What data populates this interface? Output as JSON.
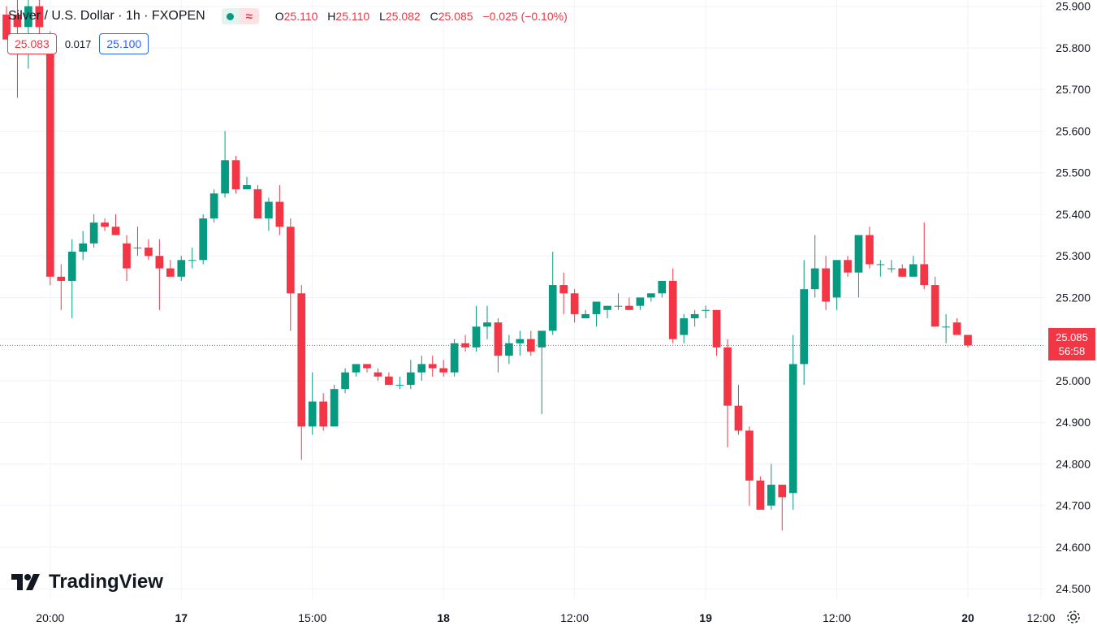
{
  "header": {
    "symbol": "Silver / U.S. Dollar · 1h · FXOPEN",
    "open_label": "O",
    "open": "25.110",
    "high_label": "H",
    "high": "25.110",
    "low_label": "L",
    "low": "25.082",
    "close_label": "C",
    "close": "25.085",
    "change": "−0.025 (−0.10%)"
  },
  "trade": {
    "bid": "25.083",
    "spread": "0.017",
    "ask": "25.100"
  },
  "last_price": {
    "price": "25.085",
    "countdown": "56:58"
  },
  "logo": {
    "text": "TradingView"
  },
  "colors": {
    "up": "#089981",
    "down": "#f23645",
    "grid": "#f0f3fa",
    "ask": "#2962ff"
  },
  "icons": [
    "status-dot-icon",
    "delay-wave-icon",
    "tradingview-logo-icon",
    "settings-gear-icon"
  ],
  "chart_data": {
    "type": "candlestick",
    "y_axis": {
      "ticks": [
        24.5,
        24.6,
        24.7,
        24.8,
        24.9,
        25.0,
        25.1,
        25.2,
        25.3,
        25.4,
        25.5,
        25.6,
        25.7,
        25.8,
        25.9
      ],
      "range": [
        24.475,
        25.915
      ]
    },
    "x_axis": {
      "ticks": [
        "20:00",
        "17",
        "15:00",
        "18",
        "12:00",
        "19",
        "12:00",
        "20",
        "12:00"
      ]
    },
    "last_price_line": 25.085,
    "candles": [
      [
        25.88,
        25.9,
        25.82,
        25.82
      ],
      [
        25.88,
        25.92,
        25.68,
        25.85
      ],
      [
        25.85,
        25.95,
        25.75,
        25.9
      ],
      [
        25.9,
        25.93,
        25.8,
        25.85
      ],
      [
        25.82,
        25.84,
        25.23,
        25.25
      ],
      [
        25.25,
        25.28,
        25.17,
        25.24
      ],
      [
        25.24,
        25.34,
        25.15,
        25.31
      ],
      [
        25.31,
        25.36,
        25.29,
        25.33
      ],
      [
        25.33,
        25.4,
        25.32,
        25.38
      ],
      [
        25.38,
        25.39,
        25.36,
        25.37
      ],
      [
        25.37,
        25.4,
        25.35,
        25.35
      ],
      [
        25.33,
        25.35,
        25.24,
        25.27
      ],
      [
        25.32,
        25.37,
        25.3,
        25.32
      ],
      [
        25.32,
        25.34,
        25.29,
        25.3
      ],
      [
        25.3,
        25.34,
        25.17,
        25.27
      ],
      [
        25.27,
        25.29,
        25.25,
        25.25
      ],
      [
        25.25,
        25.3,
        25.24,
        25.29
      ],
      [
        25.29,
        25.32,
        25.27,
        25.29
      ],
      [
        25.29,
        25.4,
        25.28,
        25.39
      ],
      [
        25.39,
        25.46,
        25.38,
        25.45
      ],
      [
        25.45,
        25.6,
        25.44,
        25.53
      ],
      [
        25.53,
        25.54,
        25.45,
        25.46
      ],
      [
        25.46,
        25.49,
        25.46,
        25.47
      ],
      [
        25.46,
        25.47,
        25.39,
        25.39
      ],
      [
        25.39,
        25.44,
        25.36,
        25.43
      ],
      [
        25.43,
        25.47,
        25.35,
        25.37
      ],
      [
        25.37,
        25.39,
        25.12,
        25.21
      ],
      [
        25.21,
        25.23,
        24.81,
        24.89
      ],
      [
        24.89,
        25.02,
        24.87,
        24.95
      ],
      [
        24.95,
        24.97,
        24.88,
        24.89
      ],
      [
        24.89,
        24.99,
        24.89,
        24.98
      ],
      [
        24.98,
        25.03,
        24.97,
        25.02
      ],
      [
        25.02,
        25.04,
        25.01,
        25.04
      ],
      [
        25.04,
        25.04,
        25.02,
        25.03
      ],
      [
        25.02,
        25.03,
        25.0,
        25.01
      ],
      [
        25.01,
        25.02,
        24.99,
        24.99
      ],
      [
        24.99,
        25.01,
        24.98,
        24.99
      ],
      [
        24.99,
        25.05,
        24.98,
        25.02
      ],
      [
        25.02,
        25.06,
        25.0,
        25.04
      ],
      [
        25.04,
        25.06,
        25.01,
        25.03
      ],
      [
        25.03,
        25.05,
        25.01,
        25.02
      ],
      [
        25.02,
        25.1,
        25.01,
        25.09
      ],
      [
        25.09,
        25.11,
        25.07,
        25.08
      ],
      [
        25.08,
        25.18,
        25.07,
        25.13
      ],
      [
        25.13,
        25.18,
        25.1,
        25.14
      ],
      [
        25.14,
        25.15,
        25.02,
        25.06
      ],
      [
        25.06,
        25.11,
        25.04,
        25.09
      ],
      [
        25.09,
        25.12,
        25.06,
        25.1
      ],
      [
        25.1,
        25.12,
        25.06,
        25.07
      ],
      [
        25.08,
        25.12,
        24.92,
        25.12
      ],
      [
        25.12,
        25.31,
        25.11,
        25.23
      ],
      [
        25.23,
        25.26,
        25.16,
        25.21
      ],
      [
        25.21,
        25.22,
        25.14,
        25.16
      ],
      [
        25.15,
        25.17,
        25.15,
        25.16
      ],
      [
        25.16,
        25.19,
        25.13,
        25.19
      ],
      [
        25.17,
        25.18,
        25.15,
        25.18
      ],
      [
        25.18,
        25.21,
        25.17,
        25.18
      ],
      [
        25.18,
        25.2,
        25.17,
        25.17
      ],
      [
        25.18,
        25.2,
        25.17,
        25.2
      ],
      [
        25.2,
        25.21,
        25.19,
        25.21
      ],
      [
        25.21,
        25.24,
        25.2,
        25.24
      ],
      [
        25.24,
        25.27,
        25.09,
        25.1
      ],
      [
        25.11,
        25.16,
        25.09,
        25.15
      ],
      [
        25.15,
        25.17,
        25.13,
        25.16
      ],
      [
        25.17,
        25.18,
        25.15,
        25.17
      ],
      [
        25.17,
        25.17,
        25.06,
        25.08
      ],
      [
        25.08,
        25.1,
        24.84,
        24.94
      ],
      [
        24.94,
        24.99,
        24.87,
        24.88
      ],
      [
        24.88,
        24.89,
        24.7,
        24.76
      ],
      [
        24.76,
        24.77,
        24.69,
        24.69
      ],
      [
        24.7,
        24.8,
        24.69,
        24.75
      ],
      [
        24.75,
        24.75,
        24.64,
        24.72
      ],
      [
        24.73,
        25.11,
        24.69,
        25.04
      ],
      [
        25.04,
        25.29,
        24.99,
        25.22
      ],
      [
        25.22,
        25.35,
        25.2,
        25.27
      ],
      [
        25.27,
        25.3,
        25.17,
        25.19
      ],
      [
        25.2,
        25.29,
        25.17,
        25.29
      ],
      [
        25.29,
        25.3,
        25.25,
        25.26
      ],
      [
        25.26,
        25.35,
        25.2,
        25.35
      ],
      [
        25.35,
        25.37,
        25.27,
        25.28
      ],
      [
        25.28,
        25.29,
        25.25,
        25.28
      ],
      [
        25.27,
        25.29,
        25.26,
        25.27
      ],
      [
        25.27,
        25.28,
        25.25,
        25.25
      ],
      [
        25.25,
        25.3,
        25.25,
        25.28
      ],
      [
        25.28,
        25.38,
        25.22,
        25.23
      ],
      [
        25.23,
        25.25,
        25.13,
        25.13
      ],
      [
        25.13,
        25.16,
        25.09,
        25.13
      ],
      [
        25.14,
        25.15,
        25.11,
        25.11
      ],
      [
        25.11,
        25.11,
        25.08,
        25.085
      ]
    ]
  }
}
